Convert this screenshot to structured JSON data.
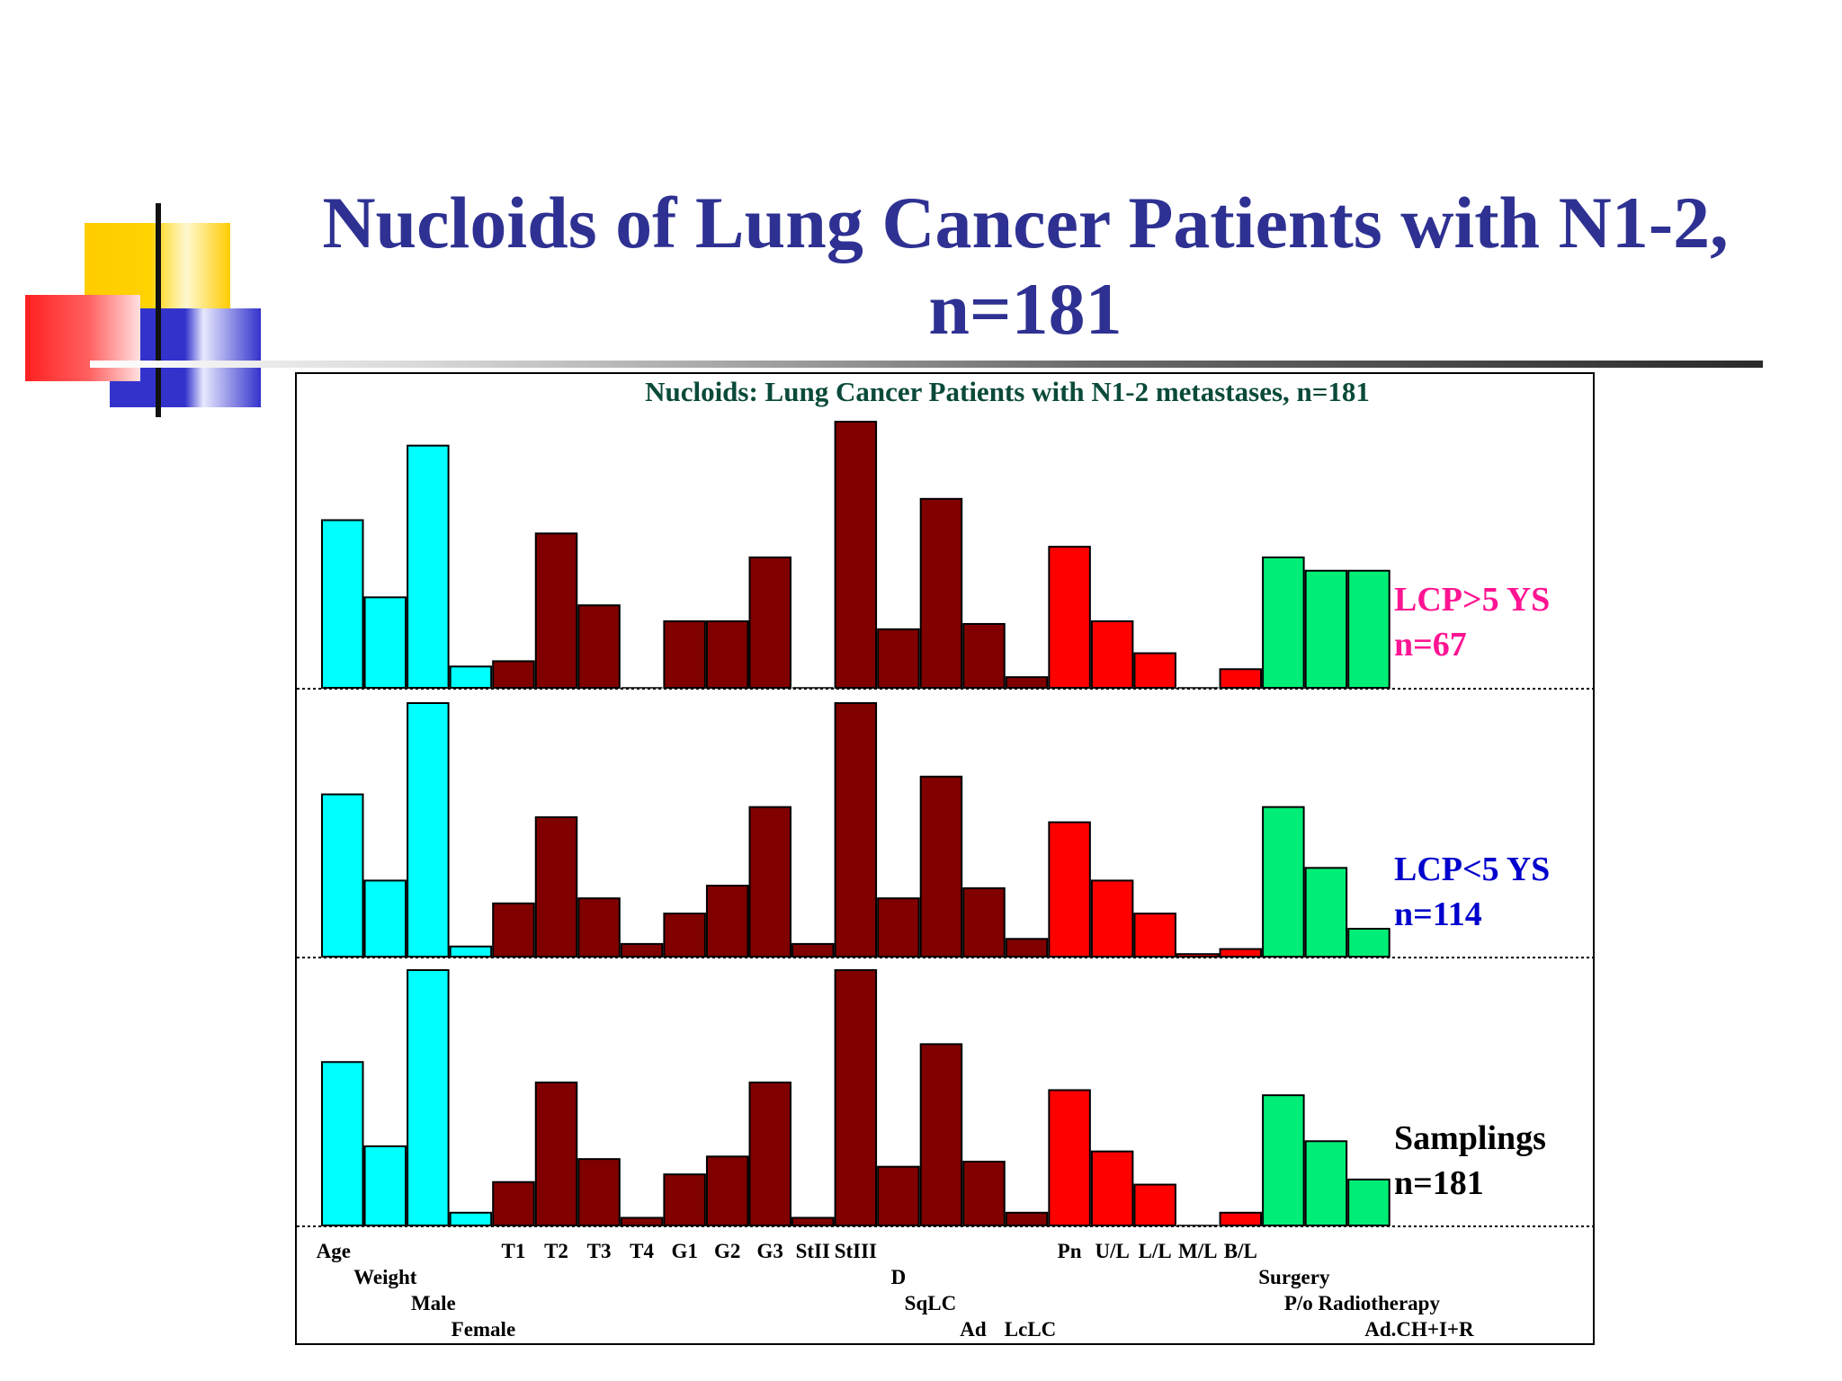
{
  "slide": {
    "title_line1": "Nucloids of Lung Cancer Patients with N1-2,",
    "title_line2": "n=181"
  },
  "colors": {
    "title": "#2e3192",
    "patient": "#00ffff",
    "tumor": "#800000",
    "resection": "#ff0000",
    "treatment": "#00ee77",
    "chart_title": "#0a4a3a",
    "panel_top": "#ff1493",
    "panel_mid": "#0000cc",
    "panel_bottom": "#000000"
  },
  "chart_data": {
    "type": "bar",
    "title": "Nucloids: Lung Cancer Patients with N1-2 metastases, n=181",
    "xlabel": "",
    "ylabel": "",
    "ylim": [
      0,
      100
    ],
    "grid": false,
    "categories": [
      "Age",
      "Weight",
      "Male",
      "Female",
      "T1",
      "T2",
      "T3",
      "T4",
      "G1",
      "G2",
      "G3",
      "StII",
      "StIII",
      "D",
      "SqLC",
      "Ad",
      "LcLC",
      "Pn",
      "U/L",
      "L/L",
      "M/L",
      "B/L",
      "Surgery",
      "P/o Radiotherapy",
      "Ad.CH+I+R"
    ],
    "category_groups": [
      "patient",
      "patient",
      "patient",
      "patient",
      "tumor",
      "tumor",
      "tumor",
      "tumor",
      "tumor",
      "tumor",
      "tumor",
      "tumor",
      "tumor",
      "tumor",
      "tumor",
      "tumor",
      "tumor",
      "resection",
      "resection",
      "resection",
      "resection",
      "resection",
      "treatment",
      "treatment",
      "treatment"
    ],
    "panels": [
      {
        "label_line1": "LCP>5 YS",
        "label_line2": "n=67",
        "color_key": "panel_top",
        "values": [
          63,
          34,
          91,
          8,
          10,
          58,
          31,
          0,
          25,
          25,
          49,
          0,
          100,
          22,
          71,
          24,
          4,
          53,
          25,
          13,
          0,
          7,
          49,
          44,
          44
        ]
      },
      {
        "label_line1": "LCP<5 YS",
        "label_line2": "n=114",
        "color_key": "panel_mid",
        "values": [
          64,
          30,
          100,
          4,
          21,
          55,
          23,
          5,
          17,
          28,
          59,
          5,
          100,
          23,
          71,
          27,
          7,
          53,
          30,
          17,
          1,
          3,
          59,
          35,
          11
        ]
      },
      {
        "label_line1": "Samplings",
        "label_line2": "n=181",
        "color_key": "panel_bottom",
        "values": [
          64,
          31,
          100,
          5,
          17,
          56,
          26,
          3,
          20,
          27,
          56,
          3,
          100,
          23,
          71,
          25,
          5,
          53,
          29,
          16,
          0,
          5,
          51,
          33,
          18
        ]
      }
    ]
  }
}
